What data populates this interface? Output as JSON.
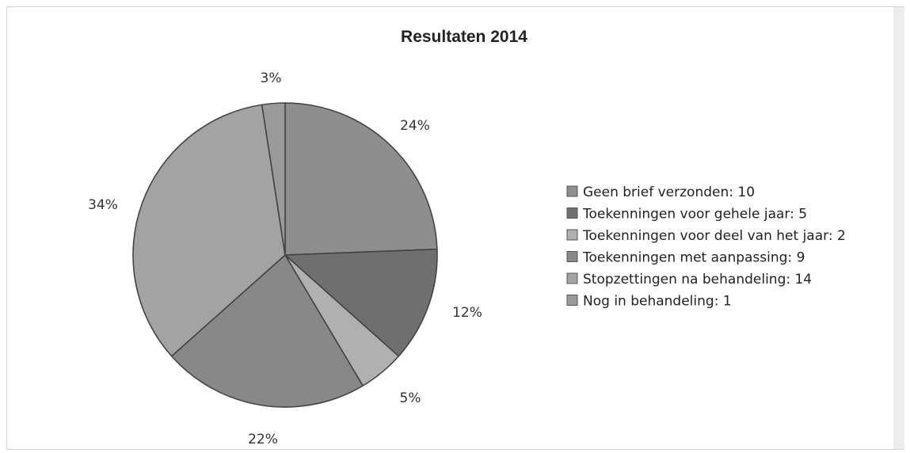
{
  "chart_data": {
    "type": "pie",
    "title": "Resultaten 2014",
    "slices": [
      {
        "legend": "Geen brief verzonden: 10",
        "value": 10,
        "percent_label": "24%",
        "color": "#8e8e8e"
      },
      {
        "legend": "Toekenningen voor gehele jaar: 5",
        "value": 5,
        "percent_label": "12%",
        "color": "#6f6f6f"
      },
      {
        "legend": "Toekenningen voor deel van het jaar: 2",
        "value": 2,
        "percent_label": "5%",
        "color": "#b0b0b0"
      },
      {
        "legend": "Toekenningen met aanpassing: 9",
        "value": 9,
        "percent_label": "22%",
        "color": "#888888"
      },
      {
        "legend": "Stopzettingen na behandeling: 14",
        "value": 14,
        "percent_label": "34%",
        "color": "#a3a3a3"
      },
      {
        "legend": "Nog in behandeling: 1",
        "value": 1,
        "percent_label": "3%",
        "color": "#9a9a9a"
      }
    ],
    "legend_position": "right"
  }
}
